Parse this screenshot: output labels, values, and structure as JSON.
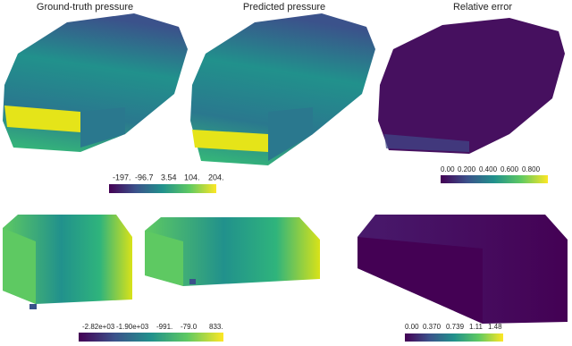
{
  "titles": [
    "Ground-truth pressure",
    "Predicted pressure",
    "Relative error"
  ],
  "colorbars": [
    {
      "labels": [
        "-197.",
        "-96.7",
        "3.54",
        "104.",
        "204."
      ]
    },
    {
      "labels": [
        "0.00",
        "0.200",
        "0.400",
        "0.600",
        "0.800"
      ]
    },
    {
      "labels": [
        "-2.82e+03",
        "-1.90e+03",
        "-991.",
        "-79.0",
        "833."
      ]
    },
    {
      "labels": [
        "0.00",
        "0.370",
        "0.739",
        "1.11",
        "1.48"
      ]
    }
  ]
}
